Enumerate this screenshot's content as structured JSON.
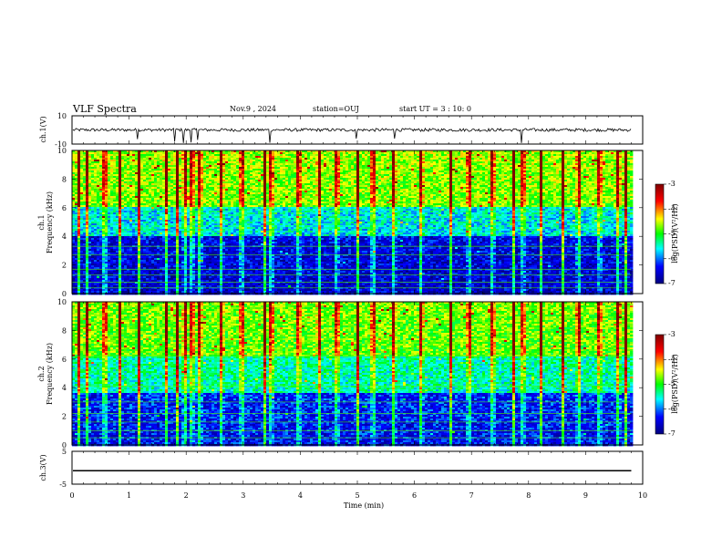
{
  "header": {
    "title": "VLF Spectra",
    "date": "Nov.9 , 2024",
    "station": "station=OUJ",
    "start_ut": "start UT = 3 : 10: 0"
  },
  "colors": {
    "waveform": "#000000",
    "colormap": [
      "#00007f",
      "#0000ff",
      "#00ffff",
      "#00ff00",
      "#ffff00",
      "#ff0000",
      "#7f0000"
    ]
  },
  "chart_data": [
    {
      "type": "line",
      "name": "ch1-waveform",
      "ylabel": "ch.1(V)",
      "ylim": [
        -10,
        10
      ],
      "y_ticks": [
        "10",
        "-10"
      ],
      "x_range_min": [
        0,
        10
      ],
      "baseline_v": 0,
      "spike_times_min": [
        1.15,
        1.8,
        1.95,
        2.08,
        2.2,
        3.47,
        4.98,
        5.65,
        7.88
      ]
    },
    {
      "type": "heatmap",
      "name": "ch1-spectrogram",
      "ylabel_line1": "ch.1",
      "ylabel_line2": "Frequency (kHz)",
      "ylim": [
        0,
        10
      ],
      "y_ticks": [
        "0",
        "2",
        "4",
        "6",
        "8",
        "10"
      ],
      "x_range_min": [
        0,
        9.8
      ],
      "colorbar": {
        "label": "log(PSD)(V²/Hz)",
        "range": [
          -7,
          -3
        ],
        "tick_labels": [
          "-3",
          "-4",
          "-5",
          "-6",
          "-7"
        ]
      },
      "background_level_by_band": [
        {
          "freq_khz": [
            0,
            4
          ],
          "log_psd": -6.6
        },
        {
          "freq_khz": [
            4,
            6
          ],
          "log_psd": -5.8
        },
        {
          "freq_khz": [
            6,
            10
          ],
          "log_psd": -4.9
        }
      ],
      "line_frequencies_khz": [
        0.4,
        0.8,
        1.3,
        1.7,
        2.7,
        3.3
      ],
      "impulse_times_min": [
        0.1,
        0.25,
        0.55,
        0.82,
        1.15,
        1.62,
        1.82,
        1.95,
        2.08,
        2.22,
        2.6,
        2.95,
        3.35,
        3.47,
        3.95,
        4.3,
        4.62,
        4.98,
        5.25,
        5.62,
        6.1,
        6.62,
        6.93,
        7.35,
        7.72,
        7.88,
        8.2,
        8.58,
        8.85,
        9.22,
        9.55,
        9.68
      ]
    },
    {
      "type": "heatmap",
      "name": "ch2-spectrogram",
      "ylabel_line1": "ch.2",
      "ylabel_line2": "Frequency (kHz)",
      "ylim": [
        0,
        10
      ],
      "y_ticks": [
        "0",
        "2",
        "4",
        "6",
        "8",
        "10"
      ],
      "x_range_min": [
        0,
        9.8
      ],
      "colorbar": {
        "label": "log(PSD)(V²/Hz)",
        "range": [
          -7,
          -3
        ],
        "tick_labels": [
          "-3",
          "-4",
          "-5",
          "-6",
          "-7"
        ]
      },
      "background_level_by_band": [
        {
          "freq_khz": [
            0,
            3.6
          ],
          "log_psd": -6.4
        },
        {
          "freq_khz": [
            3.6,
            6.2
          ],
          "log_psd": -5.6
        },
        {
          "freq_khz": [
            6.2,
            10
          ],
          "log_psd": -5.0
        }
      ],
      "line_frequencies_khz": [
        0.5,
        1.0,
        1.6,
        2.2,
        3.0,
        4.1,
        6.2
      ],
      "impulse_times_min": [
        0.1,
        0.25,
        0.55,
        0.82,
        1.15,
        1.62,
        1.82,
        1.95,
        2.08,
        2.22,
        2.6,
        2.95,
        3.35,
        3.47,
        3.95,
        4.3,
        4.62,
        4.98,
        5.25,
        5.62,
        6.1,
        6.62,
        6.93,
        7.35,
        7.72,
        7.88,
        8.2,
        8.58,
        8.85,
        9.22,
        9.55,
        9.68
      ]
    },
    {
      "type": "line",
      "name": "ch3-waveform",
      "ylabel": "ch.3(V)",
      "ylim": [
        -5,
        5
      ],
      "y_ticks": [
        "5",
        "0",
        "-5"
      ],
      "x_range_min": [
        0,
        9.8
      ],
      "constant_v": -0.9,
      "xlabel": "Time (min)",
      "x_ticks": [
        "0",
        "1",
        "2",
        "3",
        "4",
        "5",
        "6",
        "7",
        "8",
        "9",
        "10"
      ]
    }
  ]
}
